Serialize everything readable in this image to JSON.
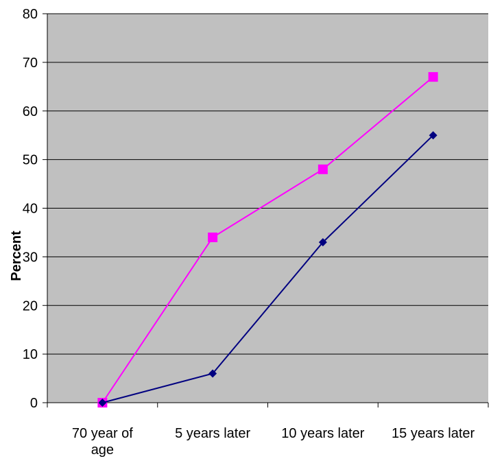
{
  "chart_data": {
    "type": "line",
    "title": "",
    "xlabel": "",
    "ylabel": "Percent",
    "categories": [
      [
        "70 year of",
        "age"
      ],
      [
        "5 years later"
      ],
      [
        "10 years later"
      ],
      [
        "15 years later"
      ]
    ],
    "ylim": [
      0,
      80
    ],
    "yticks": [
      0,
      10,
      20,
      30,
      40,
      50,
      60,
      70,
      80
    ],
    "grid": true,
    "legend": "none",
    "plot_background": "#C0C0C0",
    "series": [
      {
        "values": [
          0,
          34,
          48,
          67
        ],
        "color": "#FF00FF",
        "marker": "square"
      },
      {
        "values": [
          0,
          6,
          33,
          55
        ],
        "color": "#000080",
        "marker": "diamond"
      }
    ]
  }
}
